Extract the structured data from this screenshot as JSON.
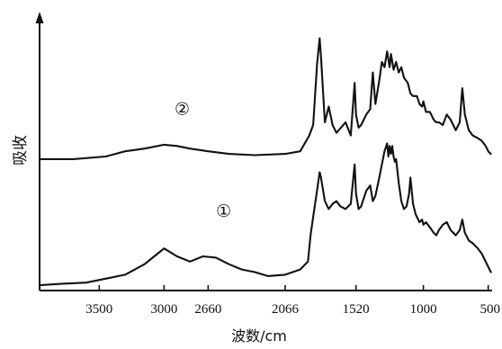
{
  "chart_data": {
    "type": "line",
    "title": "",
    "xlabel": "波数/cm",
    "ylabel": "吸收",
    "x_reversed": true,
    "xlim": [
      3960,
      470
    ],
    "x_ticks": [
      {
        "value": 3500,
        "label": "3500"
      },
      {
        "value": 3000,
        "label": "3000"
      },
      {
        "value": 2660,
        "label": "2660"
      },
      {
        "value": 2066,
        "label": "2066"
      },
      {
        "value": 1520,
        "label": "1520"
      },
      {
        "value": 1000,
        "label": "1000"
      },
      {
        "value": 500,
        "label": "500"
      }
    ],
    "ylim": [
      0,
      100
    ],
    "grid": false,
    "legend": "none",
    "series": [
      {
        "name": "②",
        "label_at": {
          "x": 2860,
          "y": 66
        },
        "x": [
          3960,
          3700,
          3450,
          3300,
          3150,
          3000,
          2900,
          2800,
          2660,
          2500,
          2300,
          2066,
          1950,
          1880,
          1850,
          1820,
          1800,
          1790,
          1760,
          1730,
          1700,
          1670,
          1600,
          1560,
          1530,
          1520,
          1500,
          1480,
          1460,
          1440,
          1410,
          1390,
          1370,
          1340,
          1320,
          1300,
          1280,
          1260,
          1250,
          1230,
          1210,
          1190,
          1170,
          1150,
          1120,
          1100,
          1080,
          1050,
          1030,
          1010,
          1000,
          980,
          950,
          920,
          900,
          880,
          850,
          820,
          790,
          770,
          750,
          720,
          700,
          680,
          650,
          620,
          580,
          550,
          520,
          500,
          480
        ],
        "y": [
          49,
          49,
          50,
          52,
          53,
          54.5,
          54,
          53,
          52,
          51,
          50.5,
          51,
          52,
          58,
          62,
          85,
          95,
          88,
          63,
          69,
          62,
          59,
          63,
          58,
          78,
          66,
          61,
          62,
          64,
          66,
          68,
          82,
          70,
          79,
          86,
          84,
          90,
          84,
          89,
          83,
          86,
          82,
          84,
          80,
          78,
          74,
          73,
          73,
          70,
          69,
          71,
          67,
          67,
          64,
          63,
          63,
          62,
          66,
          64,
          62,
          60,
          63,
          76,
          66,
          60,
          58,
          57,
          56,
          54,
          52,
          51
        ]
      },
      {
        "name": "①",
        "label_at": {
          "x": 2540,
          "y": 27
        },
        "x": [
          3960,
          3800,
          3600,
          3450,
          3300,
          3150,
          3050,
          3000,
          2900,
          2800,
          2700,
          2600,
          2500,
          2400,
          2300,
          2200,
          2066,
          1950,
          1890,
          1870,
          1850,
          1820,
          1800,
          1790,
          1760,
          1730,
          1700,
          1670,
          1640,
          1600,
          1560,
          1530,
          1520,
          1500,
          1480,
          1460,
          1440,
          1410,
          1390,
          1370,
          1340,
          1320,
          1300,
          1280,
          1270,
          1260,
          1250,
          1240,
          1230,
          1220,
          1210,
          1190,
          1170,
          1150,
          1130,
          1110,
          1100,
          1080,
          1060,
          1050,
          1030,
          1010,
          1000,
          980,
          950,
          920,
          900,
          880,
          850,
          820,
          790,
          770,
          750,
          720,
          700,
          680,
          650,
          620,
          580,
          550,
          520,
          500,
          480
        ],
        "y": [
          1,
          1.5,
          2,
          3.5,
          5,
          9,
          13,
          15,
          12,
          10,
          12,
          11.5,
          9,
          7,
          6,
          4.5,
          5,
          7,
          10,
          20,
          27,
          37,
          44,
          42,
          33,
          30,
          32,
          33,
          31,
          30,
          32,
          47,
          36,
          30,
          31,
          34,
          37,
          39,
          33,
          35,
          42,
          47,
          52,
          55,
          50,
          54,
          51,
          54,
          50,
          48,
          49,
          40,
          33,
          30,
          31,
          36,
          42,
          32,
          28,
          27,
          25,
          26,
          24,
          25,
          23,
          21,
          20,
          22,
          24,
          25,
          22,
          21,
          20,
          22,
          26,
          21,
          18,
          17,
          15,
          13,
          10,
          8,
          6
        ]
      }
    ]
  }
}
